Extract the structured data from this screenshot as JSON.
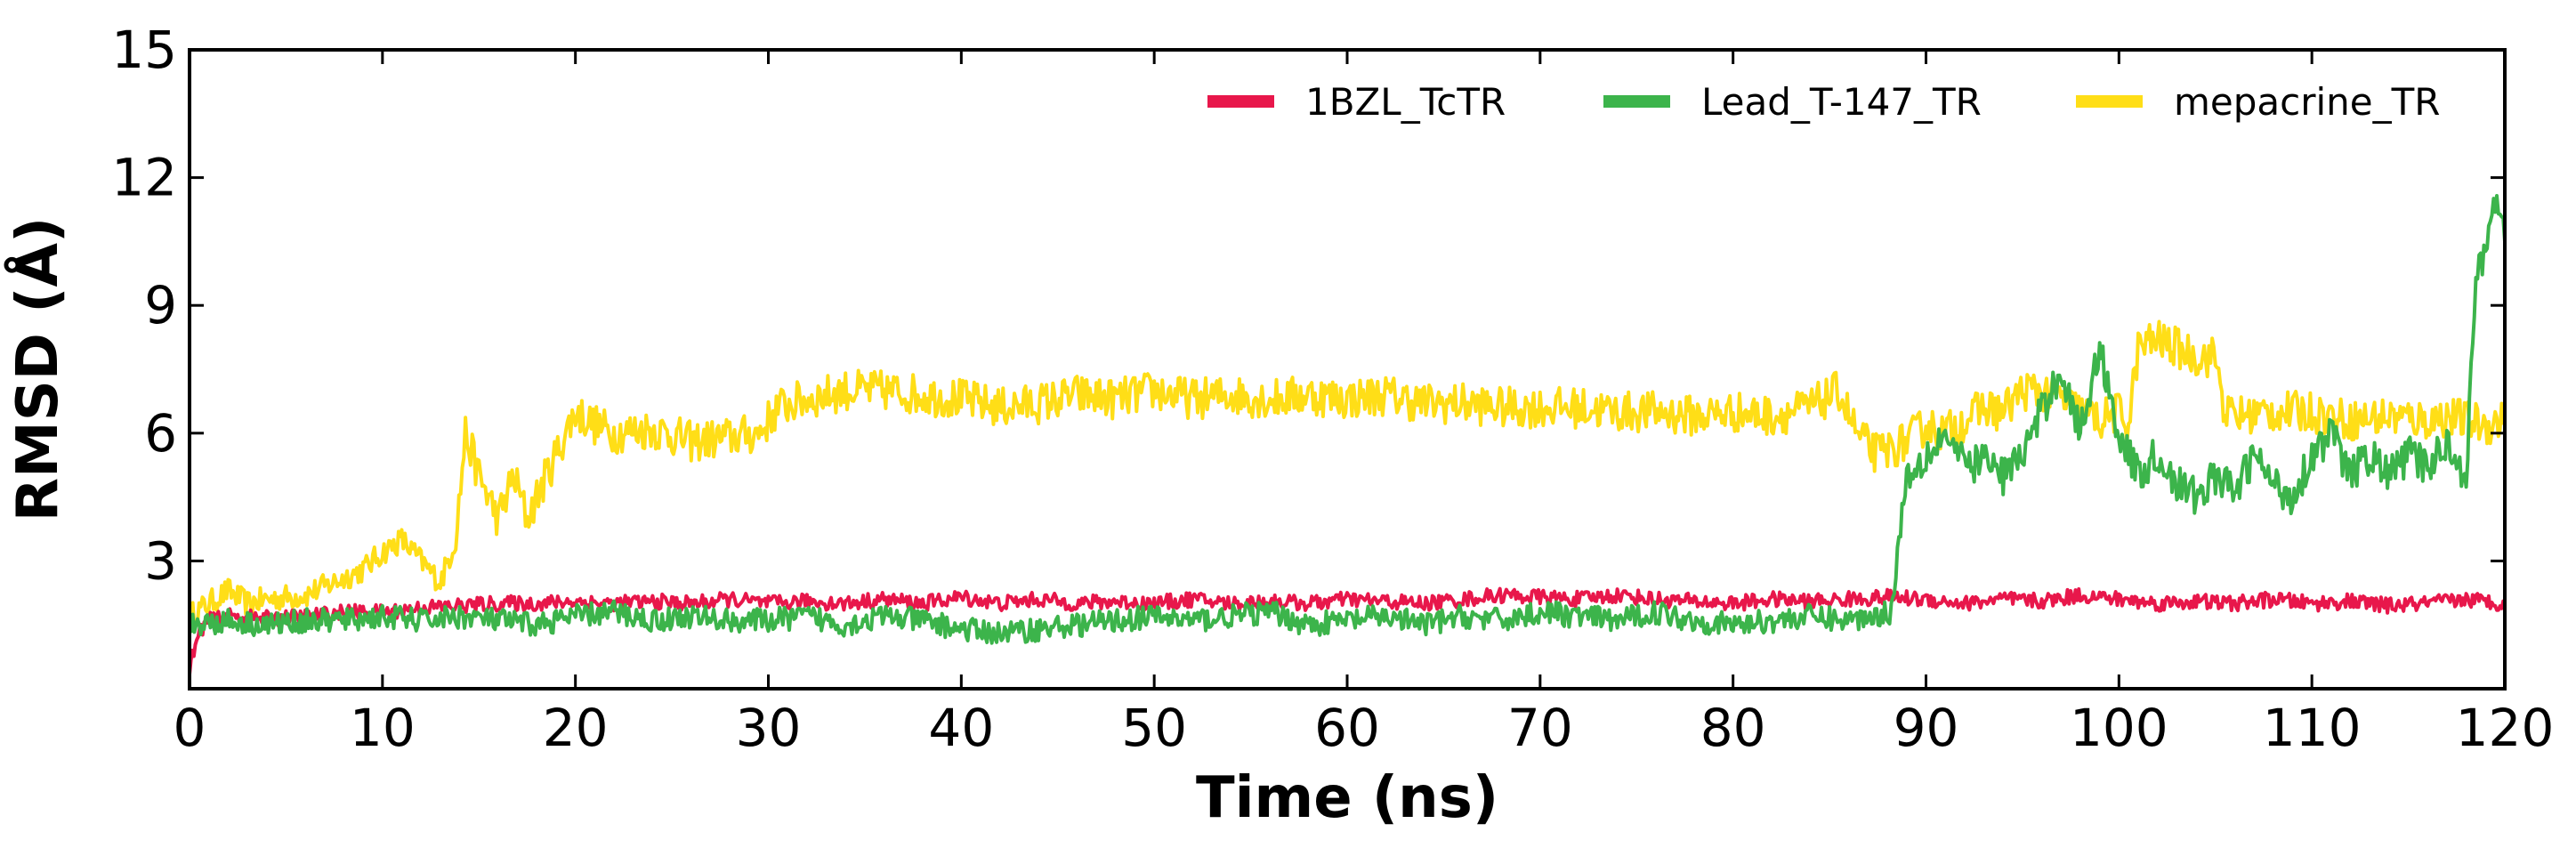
{
  "chart_data": {
    "type": "line",
    "title": "",
    "xlabel": "Time (ns)",
    "ylabel": "RMSD (Å)",
    "xlim": [
      0,
      120
    ],
    "ylim": [
      0,
      15
    ],
    "xticks": [
      0,
      10,
      20,
      30,
      40,
      50,
      60,
      70,
      80,
      90,
      100,
      110,
      120
    ],
    "yticks": [
      3,
      6,
      9,
      12,
      15
    ],
    "grid": false,
    "legend_position": "top-right",
    "series": [
      {
        "name": "1BZL_TcTR",
        "color": "#e8174b",
        "x": [
          0,
          0.3,
          0.6,
          1,
          2,
          4,
          6,
          8,
          10,
          12,
          14,
          16,
          18,
          20,
          22,
          24,
          26,
          28,
          30,
          32,
          34,
          36,
          38,
          40,
          42,
          44,
          46,
          48,
          50,
          52,
          54,
          56,
          58,
          60,
          62,
          64,
          66,
          68,
          70,
          72,
          74,
          76,
          78,
          80,
          82,
          84,
          86,
          88,
          90,
          92,
          94,
          96,
          98,
          100,
          102,
          104,
          106,
          108,
          110,
          112,
          114,
          116,
          118,
          120
        ],
        "values": [
          0.5,
          1.0,
          1.4,
          1.6,
          1.7,
          1.65,
          1.7,
          1.8,
          1.8,
          1.9,
          1.95,
          2.0,
          2.0,
          2.05,
          2.0,
          2.05,
          2.0,
          2.1,
          2.0,
          2.05,
          2.0,
          2.1,
          2.0,
          2.15,
          2.0,
          2.1,
          2.0,
          2.05,
          2.0,
          2.1,
          2.0,
          2.05,
          2.0,
          2.1,
          2.05,
          2.0,
          2.1,
          2.2,
          2.15,
          2.1,
          2.2,
          2.1,
          2.05,
          2.0,
          2.1,
          2.05,
          2.1,
          2.15,
          2.1,
          2.0,
          2.1,
          2.05,
          2.2,
          2.1,
          2.0,
          2.05,
          2.0,
          2.1,
          2.0,
          2.05,
          1.95,
          2.0,
          2.1,
          2.0
        ]
      },
      {
        "name": "Lead_T-147_TR",
        "color": "#3cb44b",
        "x": [
          0,
          2,
          4,
          6,
          8,
          10,
          12,
          14,
          16,
          18,
          20,
          22,
          24,
          26,
          28,
          30,
          32,
          34,
          36,
          38,
          40,
          42,
          44,
          46,
          48,
          50,
          52,
          54,
          56,
          58,
          60,
          62,
          64,
          66,
          68,
          70,
          72,
          74,
          76,
          78,
          80,
          82,
          84,
          86,
          88.2,
          88.6,
          89,
          90,
          91,
          92,
          93,
          94,
          95,
          96,
          97,
          98,
          99,
          100,
          101,
          102,
          103,
          104,
          105,
          106,
          107,
          108,
          109,
          110,
          111,
          112,
          113,
          114,
          115,
          116,
          117,
          118,
          118.5,
          119,
          119.5,
          120
        ],
        "values": [
          1.5,
          1.6,
          1.5,
          1.6,
          1.6,
          1.7,
          1.6,
          1.7,
          1.6,
          1.5,
          1.7,
          1.8,
          1.6,
          1.7,
          1.6,
          1.6,
          1.7,
          1.5,
          1.7,
          1.6,
          1.4,
          1.3,
          1.4,
          1.5,
          1.6,
          1.7,
          1.6,
          1.7,
          1.8,
          1.5,
          1.6,
          1.7,
          1.5,
          1.7,
          1.6,
          1.8,
          1.7,
          1.6,
          1.8,
          1.6,
          1.5,
          1.6,
          1.7,
          1.6,
          1.8,
          3.5,
          5.0,
          5.5,
          6.0,
          5.2,
          5.4,
          5.0,
          5.5,
          6.5,
          7.5,
          6.0,
          8.0,
          6.0,
          5.0,
          5.5,
          4.8,
          4.5,
          5.0,
          4.6,
          5.5,
          4.8,
          4.5,
          5.5,
          6.0,
          5.0,
          5.5,
          5.0,
          5.5,
          5.2,
          5.8,
          5.0,
          9.5,
          10.5,
          11.5,
          10.5
        ]
      },
      {
        "name": "mepacrine_TR",
        "color": "#ffde17",
        "x": [
          0,
          1,
          2,
          3,
          4,
          6,
          8,
          9,
          10,
          11,
          12,
          13,
          13.8,
          14.3,
          15,
          16,
          16.8,
          17.5,
          18,
          19,
          20,
          21,
          22,
          24,
          26,
          28,
          29.5,
          30.5,
          32,
          34,
          36,
          38,
          40,
          42,
          44,
          46,
          48,
          50,
          52,
          54,
          56,
          58,
          60,
          62,
          64,
          66,
          68,
          70,
          72,
          74,
          76,
          78,
          80,
          82,
          84,
          85.5,
          86.5,
          87.5,
          89,
          90,
          91,
          92,
          93,
          94,
          95,
          96,
          97,
          98,
          99,
          100,
          100.5,
          101,
          102,
          103,
          104,
          105,
          105.5,
          106,
          108,
          110,
          112,
          114,
          116,
          117,
          118,
          119,
          120
        ],
        "values": [
          1.7,
          2.0,
          2.3,
          2.0,
          2.1,
          2.2,
          2.6,
          2.8,
          3.2,
          3.5,
          3.0,
          2.5,
          3.5,
          6.0,
          5.0,
          4.0,
          5.0,
          4.0,
          4.5,
          5.5,
          6.5,
          6.2,
          6.0,
          6.1,
          5.8,
          5.9,
          6.0,
          6.6,
          6.8,
          7.0,
          7.0,
          6.9,
          6.8,
          6.6,
          6.7,
          6.9,
          6.8,
          7.0,
          6.8,
          6.9,
          6.8,
          6.9,
          6.8,
          6.9,
          6.7,
          6.7,
          6.6,
          6.6,
          6.6,
          6.5,
          6.5,
          6.4,
          6.5,
          6.4,
          6.6,
          7.0,
          5.9,
          5.5,
          5.8,
          6.2,
          6.0,
          6.3,
          6.6,
          6.5,
          7.0,
          7.0,
          6.8,
          6.5,
          6.3,
          6.5,
          6.2,
          8.0,
          8.2,
          8.0,
          7.8,
          7.8,
          6.5,
          6.4,
          6.5,
          6.5,
          6.3,
          6.4,
          6.3,
          6.4,
          6.3,
          6.2,
          6.3
        ]
      }
    ]
  }
}
